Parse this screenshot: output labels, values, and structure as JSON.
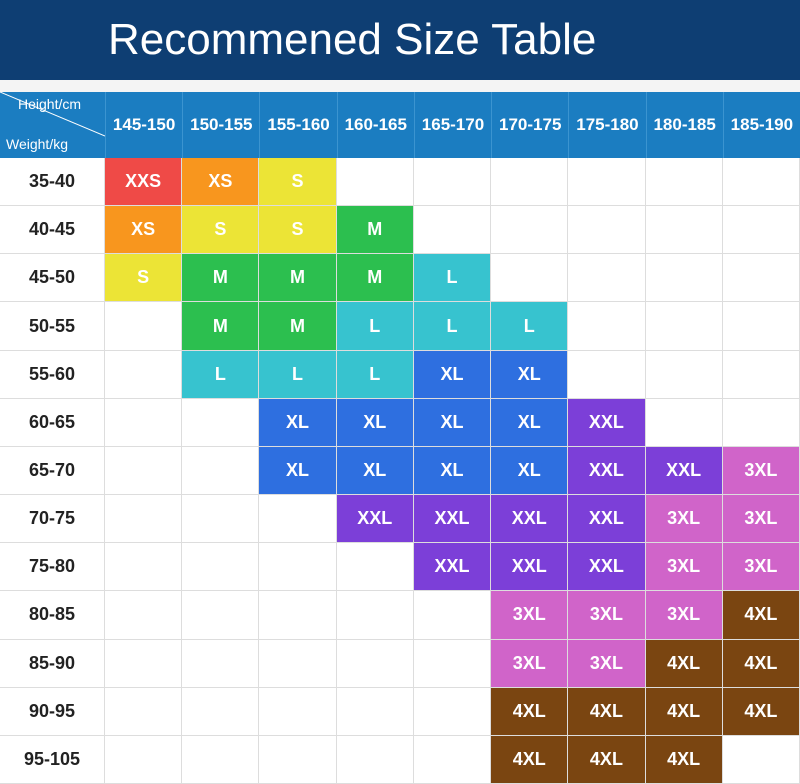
{
  "title": "Recommened Size Table",
  "table": {
    "corner": {
      "top": "Height/cm",
      "bottom": "Weight/kg"
    },
    "columns": [
      "145-150",
      "150-155",
      "155-160",
      "160-165",
      "165-170",
      "170-175",
      "175-180",
      "180-185",
      "185-190"
    ],
    "rows": [
      {
        "label": "35-40",
        "cells": [
          "XXS",
          "XS",
          "S",
          null,
          null,
          null,
          null,
          null,
          null
        ]
      },
      {
        "label": "40-45",
        "cells": [
          "XS",
          "S",
          "S",
          "M",
          null,
          null,
          null,
          null,
          null
        ]
      },
      {
        "label": "45-50",
        "cells": [
          "S",
          "M",
          "M",
          "M",
          "L",
          null,
          null,
          null,
          null
        ]
      },
      {
        "label": "50-55",
        "cells": [
          null,
          "M",
          "M",
          "L",
          "L",
          "L",
          null,
          null,
          null
        ]
      },
      {
        "label": "55-60",
        "cells": [
          null,
          "L",
          "L",
          "L",
          "XL",
          "XL",
          null,
          null,
          null
        ]
      },
      {
        "label": "60-65",
        "cells": [
          null,
          null,
          "XL",
          "XL",
          "XL",
          "XL",
          "XXL",
          null,
          null
        ]
      },
      {
        "label": "65-70",
        "cells": [
          null,
          null,
          "XL",
          "XL",
          "XL",
          "XL",
          "XXL",
          "XXL",
          "3XL"
        ]
      },
      {
        "label": "70-75",
        "cells": [
          null,
          null,
          null,
          "XXL",
          "XXL",
          "XXL",
          "XXL",
          "3XL",
          "3XL"
        ]
      },
      {
        "label": "75-80",
        "cells": [
          null,
          null,
          null,
          null,
          "XXL",
          "XXL",
          "XXL",
          "3XL",
          "3XL"
        ]
      },
      {
        "label": "80-85",
        "cells": [
          null,
          null,
          null,
          null,
          null,
          "3XL",
          "3XL",
          "3XL",
          "4XL"
        ]
      },
      {
        "label": "85-90",
        "cells": [
          null,
          null,
          null,
          null,
          null,
          "3XL",
          "3XL",
          "4XL",
          "4XL"
        ]
      },
      {
        "label": "90-95",
        "cells": [
          null,
          null,
          null,
          null,
          null,
          "4XL",
          "4XL",
          "4XL",
          "4XL"
        ]
      },
      {
        "label": "95-105",
        "cells": [
          null,
          null,
          null,
          null,
          null,
          "4XL",
          "4XL",
          "4XL",
          null
        ]
      }
    ],
    "size_colors": {
      "XXS": "#ef4a47",
      "XS": "#f8961e",
      "S": "#ece436",
      "M": "#2cbf4f",
      "L": "#37c3cf",
      "XL": "#2e6fe0",
      "XXL": "#7c3fd8",
      "3XL": "#d064c9",
      "4XL": "#7a4511"
    }
  }
}
